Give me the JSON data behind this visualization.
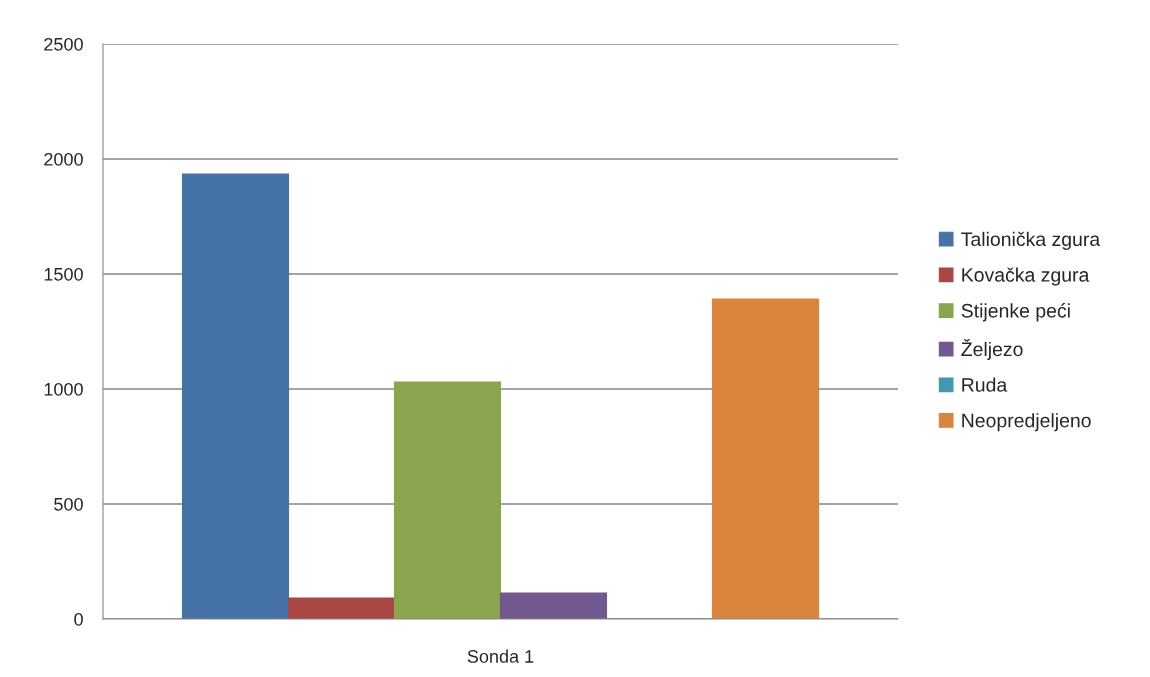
{
  "chart_data": {
    "type": "bar",
    "categories": [
      "Sonda 1"
    ],
    "series": [
      {
        "name": "Talionička zgura",
        "color": "#4572a7",
        "values": [
          1935
        ]
      },
      {
        "name": "Kovačka zgura",
        "color": "#aa4643",
        "values": [
          91
        ]
      },
      {
        "name": "Stijenke peći",
        "color": "#89a54e",
        "values": [
          1030
        ]
      },
      {
        "name": "Željezo",
        "color": "#71588f",
        "values": [
          113
        ]
      },
      {
        "name": "Ruda",
        "color": "#4198af",
        "values": [
          0
        ]
      },
      {
        "name": "Neopredjeljeno",
        "color": "#db843d",
        "values": [
          1391
        ]
      }
    ],
    "ylim": [
      0,
      2500
    ],
    "yticks": [
      0,
      500,
      1000,
      1500,
      2000,
      2500
    ],
    "grid": "y",
    "legend": "right"
  }
}
